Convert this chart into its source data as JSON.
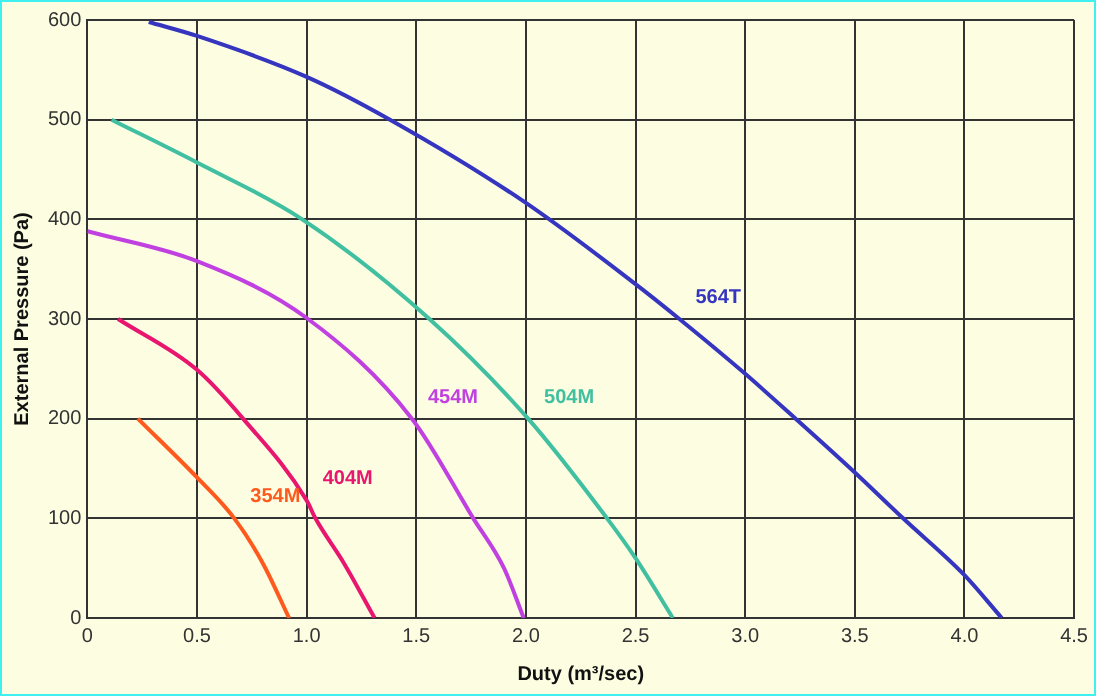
{
  "chart_data": {
    "type": "line",
    "xlabel": "Duty (m³/sec)",
    "ylabel": "External Pressure (Pa)",
    "xlim": [
      0,
      4.5
    ],
    "xticks": [
      0,
      {
        "value": 0.5,
        "label": "0.5"
      },
      {
        "value": 1,
        "label": "1.0"
      },
      {
        "value": 1.5,
        "label": "1.5"
      },
      {
        "value": 2,
        "label": "2.0"
      },
      {
        "value": 2.5,
        "label": "2.5"
      },
      {
        "value": 3,
        "label": "3.0"
      },
      {
        "value": 3.5,
        "label": "3.5"
      },
      {
        "value": 4,
        "label": "4.0"
      },
      {
        "value": 4.5,
        "label": "4.5"
      }
    ],
    "ylim": [
      0,
      600
    ],
    "yticks": [
      0,
      100,
      200,
      300,
      400,
      500,
      600
    ],
    "grid": true,
    "legend": false,
    "marker": "none",
    "line_style": "solid",
    "series": [
      {
        "name": "354M",
        "color": "#ff5a1e",
        "x": [
          0.23,
          0.5,
          0.67,
          0.8,
          0.92
        ],
        "values": [
          200,
          141,
          100,
          55,
          0
        ]
      },
      {
        "name": "404M",
        "color": "#e8166e",
        "x": [
          0.14,
          0.5,
          0.71,
          1.0,
          1.04,
          1.17,
          1.31
        ],
        "values": [
          300,
          249,
          200,
          118,
          100,
          55,
          0
        ]
      },
      {
        "name": "454M",
        "color": "#c040e0",
        "x": [
          0,
          0.5,
          1.0,
          1.48,
          1.76,
          1.9,
          1.99
        ],
        "values": [
          388,
          358,
          301,
          200,
          100,
          50,
          0
        ]
      },
      {
        "name": "504M",
        "color": "#40c0a0",
        "x": [
          0.11,
          0.5,
          0.98,
          1.56,
          2.01,
          2.37,
          2.5,
          2.67
        ],
        "values": [
          500,
          457,
          400,
          300,
          200,
          100,
          60,
          0
        ]
      },
      {
        "name": "564T",
        "color": "#3535c0",
        "x": [
          0.28,
          0.5,
          1.0,
          1.38,
          1.99,
          2.5,
          2.7,
          3.0,
          3.23,
          3.5,
          3.72,
          4.0,
          4.17
        ],
        "values": [
          598,
          584,
          543,
          500,
          418,
          335,
          300,
          245,
          200,
          146,
          100,
          43,
          0
        ]
      }
    ]
  }
}
